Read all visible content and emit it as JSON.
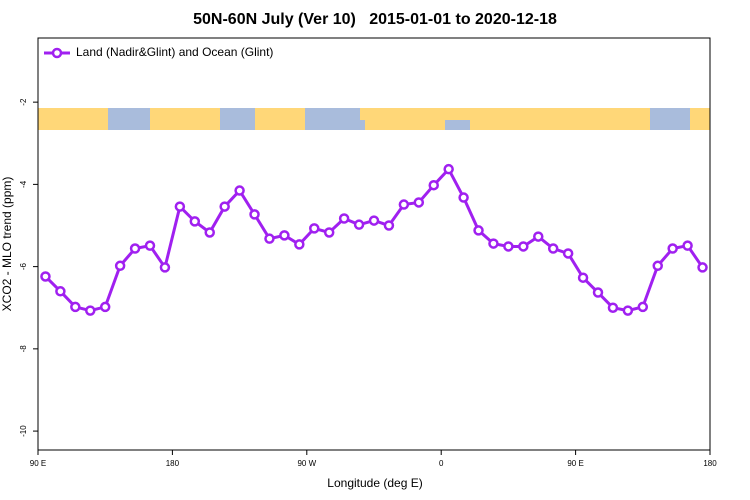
{
  "chart_data": {
    "type": "line",
    "title": "50N-60N July (Ver 10)   2015-01-01 to 2020-12-18",
    "xlabel": "Longitude (deg E)",
    "ylabel": "XCO2 - MLO trend (ppm)",
    "xlim": [
      90,
      540
    ],
    "ylim": [
      -10.46,
      -0.44
    ],
    "xticks": [
      {
        "value": 90,
        "label": "90 E"
      },
      {
        "value": 180,
        "label": "180"
      },
      {
        "value": 270,
        "label": "90 W"
      },
      {
        "value": 360,
        "label": "0"
      },
      {
        "value": 450,
        "label": "90 E"
      },
      {
        "value": 540,
        "label": "180"
      }
    ],
    "yticks": [
      -2,
      -4,
      -6,
      -8,
      -10
    ],
    "legend": "top-left",
    "x": [
      95,
      105,
      115,
      125,
      135,
      145,
      155,
      165,
      175,
      185,
      195,
      205,
      215,
      225,
      235,
      245,
      255,
      265,
      275,
      285,
      295,
      305,
      315,
      325,
      335,
      345,
      355,
      365,
      375,
      385,
      395,
      405,
      415,
      425,
      435,
      445,
      455,
      465,
      475,
      485,
      495,
      505,
      515,
      525,
      535
    ],
    "series": [
      {
        "name": "Land (Nadir&Glint) and Ocean (Glint)",
        "color": "#a020f0",
        "values": [
          -6.24,
          -6.6,
          -6.98,
          -7.07,
          -6.98,
          -5.98,
          -5.56,
          -5.49,
          -6.02,
          -4.54,
          -4.9,
          -5.17,
          -4.54,
          -4.15,
          -4.73,
          -5.32,
          -5.24,
          -5.46,
          -5.07,
          -5.17,
          -4.83,
          -4.98,
          -4.88,
          -5.0,
          -4.49,
          -4.44,
          -4.02,
          -3.63,
          -4.32,
          -5.12,
          -5.44,
          -5.51,
          -5.51,
          -5.27,
          -5.56,
          -5.68,
          -6.27,
          -6.63,
          -7.0,
          -7.07,
          -6.98,
          -5.98,
          -5.56,
          -5.49,
          -6.02
        ]
      }
    ]
  }
}
